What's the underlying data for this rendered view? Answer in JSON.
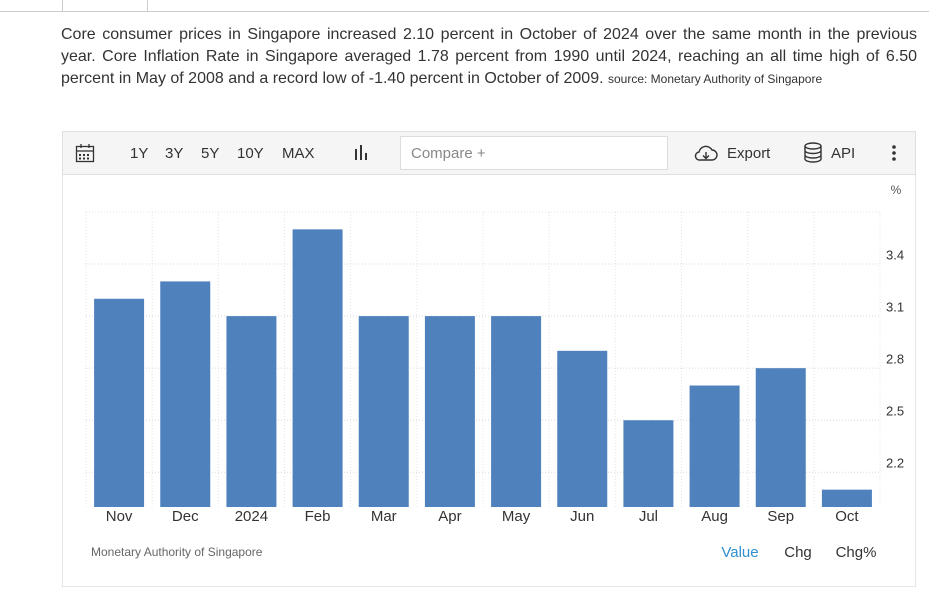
{
  "description": {
    "text": "Core consumer prices in Singapore increased 2.10 percent in October of 2024 over the same month in the previous year. Core Inflation Rate in Singapore averaged 1.78 percent from 1990 until 2024, reaching an all time high of 6.50 percent in May of 2008 and a record low of -1.40 percent in October of 2009.",
    "source": "source: Monetary Authority of Singapore"
  },
  "toolbar": {
    "ranges": [
      "1Y",
      "3Y",
      "5Y",
      "10Y",
      "MAX"
    ],
    "compare_placeholder": "Compare +",
    "export": "Export",
    "api": "API"
  },
  "chart_data": {
    "type": "bar",
    "unit": "%",
    "categories": [
      "Nov",
      "Dec",
      "2024",
      "Feb",
      "Mar",
      "Apr",
      "May",
      "Jun",
      "Jul",
      "Aug",
      "Sep",
      "Oct"
    ],
    "values": [
      3.2,
      3.3,
      3.1,
      3.6,
      3.1,
      3.1,
      3.1,
      2.9,
      2.5,
      2.7,
      2.8,
      2.1
    ],
    "color": "#4f81bd",
    "ylim": [
      2.0,
      3.7
    ],
    "yticks": [
      2.2,
      2.5,
      2.8,
      3.1,
      3.4
    ],
    "grid": true
  },
  "footer": {
    "source": "Monetary Authority of Singapore",
    "tabs": [
      "Value",
      "Chg",
      "Chg%"
    ]
  }
}
